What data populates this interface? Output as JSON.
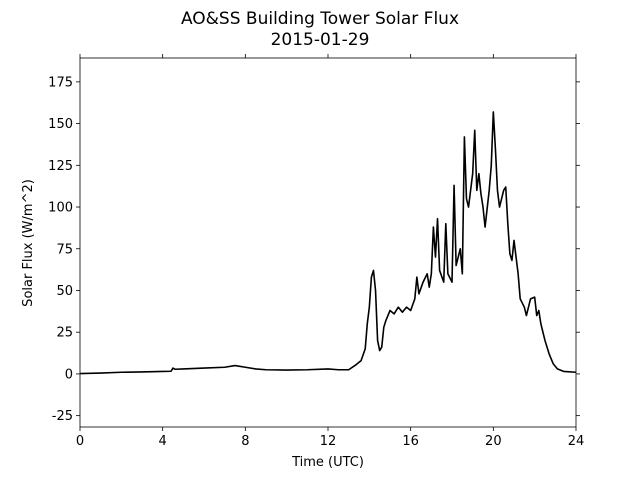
{
  "chart_data": {
    "type": "line",
    "title": "AO&SS Building Tower Solar Flux",
    "subtitle": "2015-01-29",
    "x_label": "Time (UTC)",
    "y_label": "Solar Flux (W/m^2)",
    "color": "#000000",
    "xlim": [
      0,
      24
    ],
    "xticks": [
      0,
      4,
      8,
      12,
      16,
      20,
      24
    ],
    "ylim": [
      -31.8,
      189.3
    ],
    "yticks": [
      -25,
      0,
      25,
      50,
      75,
      100,
      125,
      150,
      175
    ],
    "x": [
      0,
      1,
      2,
      3,
      4,
      4.4,
      4.5,
      4.6,
      5,
      6,
      7,
      7.5,
      8,
      8.5,
      9,
      10,
      11,
      12,
      12.5,
      13,
      13.3,
      13.6,
      13.8,
      13.9,
      14,
      14.1,
      14.2,
      14.3,
      14.4,
      14.5,
      14.6,
      14.7,
      14.8,
      15,
      15.2,
      15.4,
      15.6,
      15.8,
      16,
      16.2,
      16.3,
      16.4,
      16.6,
      16.8,
      16.9,
      17,
      17.1,
      17.2,
      17.3,
      17.4,
      17.6,
      17.7,
      17.8,
      18,
      18.1,
      18.2,
      18.4,
      18.5,
      18.6,
      18.7,
      18.8,
      19,
      19.1,
      19.2,
      19.3,
      19.4,
      19.5,
      19.6,
      19.8,
      19.9,
      20,
      20.1,
      20.2,
      20.3,
      20.5,
      20.6,
      20.7,
      20.8,
      20.9,
      21,
      21.1,
      21.2,
      21.3,
      21.5,
      21.6,
      21.8,
      22,
      22.1,
      22.2,
      22.3,
      22.5,
      22.7,
      22.9,
      23.1,
      23.4,
      24
    ],
    "values": [
      0.2,
      0.5,
      1,
      1.2,
      1.5,
      1.6,
      3.5,
      2.8,
      3,
      3.5,
      4,
      5,
      4,
      3,
      2.5,
      2.3,
      2.5,
      3,
      2.5,
      2.5,
      5,
      8,
      15,
      30,
      40,
      58,
      62,
      50,
      20,
      14,
      16,
      28,
      32,
      38,
      36,
      40,
      37,
      40,
      38,
      45,
      58,
      48,
      55,
      60,
      52,
      60,
      88,
      70,
      93,
      62,
      55,
      90,
      60,
      55,
      113,
      65,
      75,
      60,
      142,
      105,
      100,
      120,
      146,
      110,
      120,
      108,
      100,
      88,
      110,
      125,
      157,
      135,
      110,
      100,
      110,
      112,
      90,
      72,
      68,
      80,
      70,
      60,
      45,
      40,
      35,
      45,
      46,
      35,
      38,
      30,
      20,
      12,
      6,
      3,
      1.5,
      1
    ]
  }
}
